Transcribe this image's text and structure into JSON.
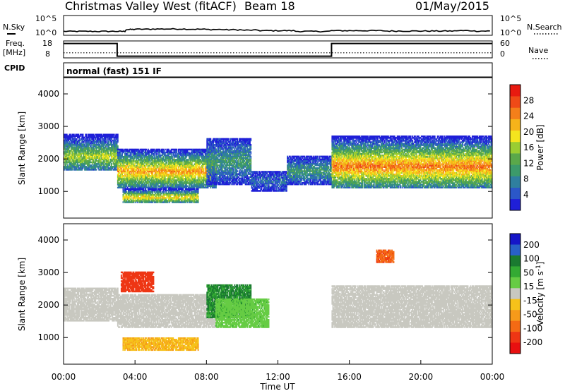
{
  "header": {
    "title": "Christmas Valley West (fitACF)",
    "beam": "Beam 18",
    "date": "01/May/2015"
  },
  "colors": {
    "power_scale": [
      "#1f1fd8",
      "#2b57c8",
      "#2f7f9f",
      "#3c9a6a",
      "#5aa84a",
      "#9acd32",
      "#f4e51e",
      "#f6b31a",
      "#f47f1a",
      "#ef4a17",
      "#e81a10"
    ],
    "velocity_scale": [
      "#1515c8",
      "#2860c8",
      "#1a7a30",
      "#33aa33",
      "#66cc44",
      "#c8c8c0",
      "#f6c21a",
      "#f69a1a",
      "#f46a14",
      "#ee3614",
      "#e81010"
    ]
  },
  "panels": {
    "nsky": {
      "left_label": "N.Sky",
      "right_label": "N.Search",
      "left_ticks": [
        "10^5",
        "10^0"
      ],
      "right_ticks": [
        "10^5",
        "10^0"
      ]
    },
    "freq": {
      "left_label_1": "Freq.",
      "left_label_2": "[MHz]",
      "right_label": "Nave",
      "left_ticks": [
        "18",
        "8"
      ],
      "right_ticks": [
        "60",
        "0"
      ]
    },
    "cpid": {
      "label": "CPID",
      "value": "normal (fast) 151 IF"
    }
  },
  "chart_data": [
    {
      "type": "line",
      "title": "N.Sky / N.Search",
      "xlabel": "",
      "ylabel": "N.Sky",
      "y_scale": "log",
      "ylim": [
        1,
        100000
      ],
      "x_range": [
        "00:00",
        "24:00"
      ],
      "series": [
        {
          "name": "N.Sky",
          "x_hours": [
            0,
            1,
            2,
            3,
            3.5,
            4,
            5,
            6,
            7,
            8,
            9,
            10,
            11,
            12,
            13,
            14,
            15,
            16,
            17,
            18,
            19,
            20,
            21,
            22,
            23,
            24
          ],
          "values": [
            10,
            10,
            10,
            10,
            30,
            35,
            40,
            40,
            35,
            30,
            25,
            20,
            15,
            15,
            10,
            10,
            15,
            15,
            15,
            12,
            12,
            12,
            12,
            15,
            12,
            12
          ]
        }
      ]
    },
    {
      "type": "line",
      "title": "Freq. / Nave",
      "xlabel": "",
      "ylabel": "Freq. [MHz]",
      "ylim": [
        8,
        18
      ],
      "x_range": [
        "00:00",
        "24:00"
      ],
      "series": [
        {
          "name": "Freq.",
          "x_hours": [
            0,
            3,
            3,
            15,
            15,
            24
          ],
          "values": [
            16.5,
            16.5,
            9,
            9,
            16.5,
            16.5
          ]
        },
        {
          "name": "Nave",
          "x_hours": [
            0,
            24
          ],
          "values": [
            18,
            18
          ]
        }
      ]
    },
    {
      "type": "heatmap",
      "title": "Power",
      "xlabel": "",
      "ylabel": "Slant Range [km]",
      "ylim": [
        180,
        4500
      ],
      "yticks": [
        1000,
        2000,
        3000,
        4000
      ],
      "colorbar": {
        "label": "Power [dB]",
        "ticks": [
          "4",
          "8",
          "12",
          "16",
          "20",
          "24",
          "28"
        ],
        "range": [
          0,
          30
        ]
      },
      "regions": [
        {
          "t0": 0.0,
          "t1": 3.0,
          "r0": 1650,
          "r1": 2750,
          "core_range": 2050,
          "core_value": 16
        },
        {
          "t0": 3.0,
          "t1": 8.5,
          "r0": 1100,
          "r1": 2300,
          "core_range": 1600,
          "core_value": 22
        },
        {
          "t0": 3.3,
          "t1": 7.5,
          "r0": 650,
          "r1": 1100,
          "core_range": 800,
          "core_value": 20
        },
        {
          "t0": 8.0,
          "t1": 10.5,
          "r0": 1200,
          "r1": 2600,
          "core_range": 1900,
          "core_value": 10
        },
        {
          "t0": 10.5,
          "t1": 12.5,
          "r0": 1000,
          "r1": 1600,
          "core_range": 1300,
          "core_value": 6
        },
        {
          "t0": 12.5,
          "t1": 15.0,
          "r0": 1200,
          "r1": 2100,
          "core_range": 1600,
          "core_value": 10
        },
        {
          "t0": 15.0,
          "t1": 24.0,
          "r0": 1100,
          "r1": 2700,
          "core_range": 1750,
          "core_value": 24
        }
      ]
    },
    {
      "type": "heatmap",
      "title": "Velocity",
      "xlabel": "Time UT",
      "ylabel": "Slant Range [km]",
      "ylim": [
        180,
        4500
      ],
      "yticks": [
        1000,
        2000,
        3000,
        4000
      ],
      "xticks": [
        "00:00",
        "04:00",
        "08:00",
        "12:00",
        "16:00",
        "20:00",
        "00:00"
      ],
      "colorbar": {
        "label": "Velocity [m s^-1]",
        "ticks": [
          "200",
          "100",
          "50",
          "15",
          "-15",
          "-50",
          "-100",
          "-200"
        ],
        "range": [
          -250,
          250
        ]
      },
      "regions": [
        {
          "t0": 0.0,
          "t1": 3.0,
          "r0": 1500,
          "r1": 2500,
          "core_value": 0
        },
        {
          "t0": 3.0,
          "t1": 8.5,
          "r0": 1300,
          "r1": 2300,
          "core_value": 0
        },
        {
          "t0": 3.3,
          "t1": 7.5,
          "r0": 600,
          "r1": 1000,
          "core_value": -60
        },
        {
          "t0": 3.2,
          "t1": 5.0,
          "r0": 2400,
          "r1": 3000,
          "core_value": -180
        },
        {
          "t0": 8.0,
          "t1": 10.5,
          "r0": 1600,
          "r1": 2600,
          "core_value": 120
        },
        {
          "t0": 8.5,
          "t1": 11.5,
          "r0": 1300,
          "r1": 2200,
          "core_value": 50
        },
        {
          "t0": 15.0,
          "t1": 24.0,
          "r0": 1300,
          "r1": 2600,
          "core_value": 0
        },
        {
          "t0": 17.5,
          "t1": 18.5,
          "r0": 3300,
          "r1": 3700,
          "core_value": -150
        }
      ]
    }
  ]
}
